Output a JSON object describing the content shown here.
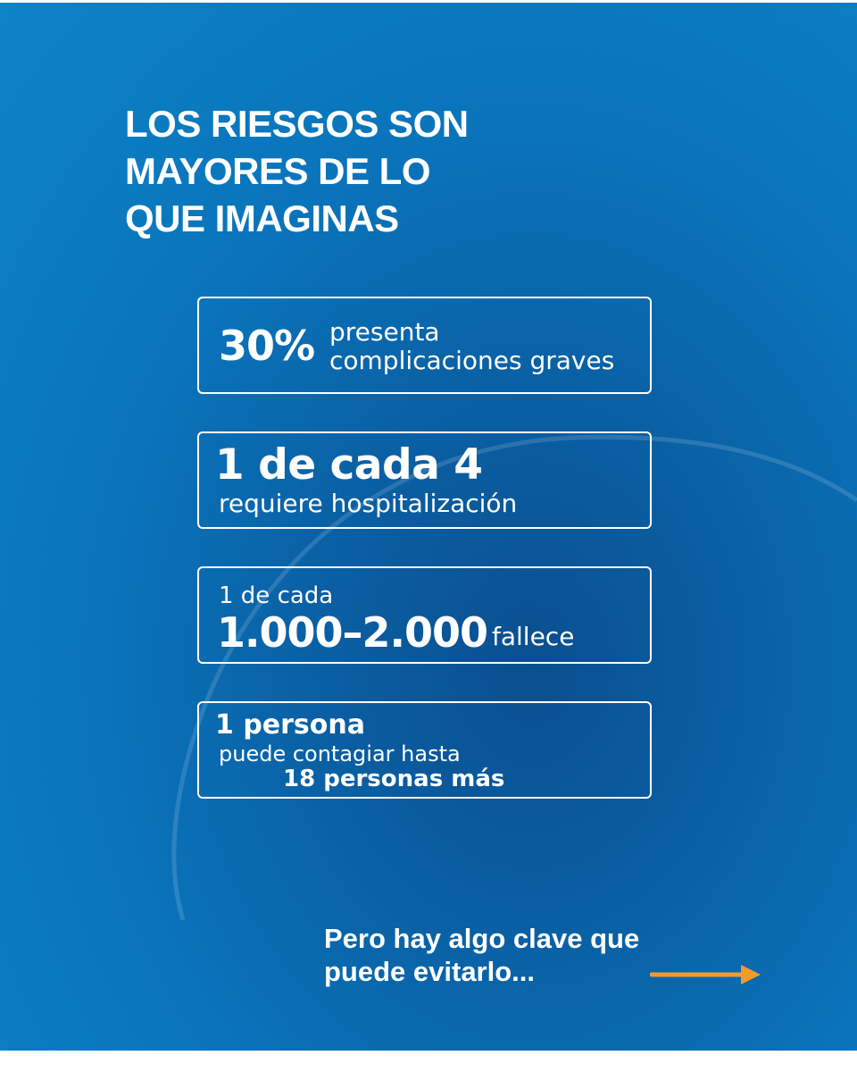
{
  "headline": {
    "line1": "LOS RIESGOS SON",
    "line2": "MAYORES DE LO",
    "line3": "QUE IMAGINAS"
  },
  "stats": [
    {
      "big": "30%",
      "text_line1": "presenta",
      "text_line2": "complicaciones graves"
    },
    {
      "big": "1 de cada 4",
      "small": "requiere hospitalización"
    },
    {
      "small": "1 de cada",
      "big": "1.000–2.000",
      "tail": "fallece"
    },
    {
      "big": "1 persona",
      "mid": "puede contagiar hasta",
      "last": "18 personas más"
    }
  ],
  "cta": {
    "line1": "Pero hay algo clave que",
    "line2": "puede evitarlo..."
  },
  "icons": {
    "arrow": "arrow-right-icon"
  },
  "colors": {
    "background": "#0a6fb8",
    "text": "#ffffff",
    "accent": "#f39a2d"
  }
}
